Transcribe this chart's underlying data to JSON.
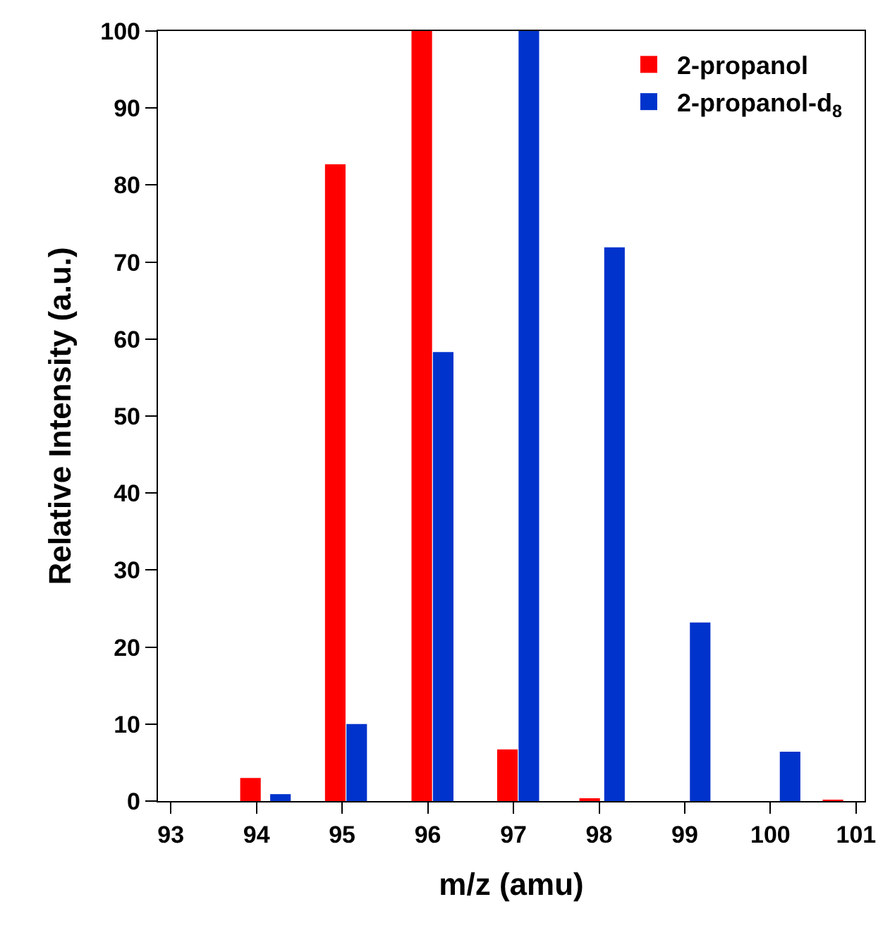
{
  "chart_data": {
    "type": "bar",
    "xlabel": "m/z (amu)",
    "ylabel": "Relative Intensity (a.u.)",
    "xlim": [
      92.85,
      101.1
    ],
    "xticks": [
      93,
      94,
      95,
      96,
      97,
      98,
      99,
      100,
      101
    ],
    "ylim": [
      0,
      100
    ],
    "yticks": [
      0,
      10,
      20,
      30,
      40,
      50,
      60,
      70,
      80,
      90,
      100
    ],
    "series": [
      {
        "name": "2-propanol",
        "color": "#ff0000",
        "x": [
          93.93,
          94.92,
          95.93,
          96.93,
          97.89,
          100.73
        ],
        "values": [
          3,
          82.7,
          100,
          6.7,
          0.3,
          0.1
        ]
      },
      {
        "name": "2-propanol-d$_{8}$",
        "color": "#0033cc",
        "x": [
          94.28,
          95.17,
          96.18,
          97.18,
          98.18,
          99.18,
          100.23
        ],
        "values": [
          0.9,
          10,
          58.3,
          100,
          71.9,
          23.2,
          6.4
        ]
      }
    ],
    "grid": false,
    "legend": "top right"
  }
}
